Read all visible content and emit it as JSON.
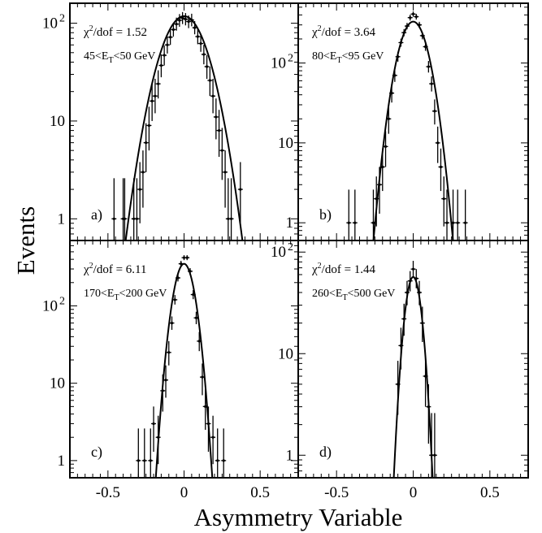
{
  "figure": {
    "ylabel": "Events",
    "xlabel": "Asymmetry Variable",
    "x_ticks": [
      "-0.5",
      "0",
      "0.5"
    ]
  },
  "chart_data": [
    {
      "type": "scatter",
      "panel_label": "a)",
      "chi2_value": "1.52",
      "et_range": {
        "low": "45",
        "high": "50",
        "unit": "GeV"
      },
      "xlim": [
        -0.75,
        0.75
      ],
      "ylim": [
        0.6,
        160
      ],
      "log_y": true,
      "y_ticks": [
        {
          "value": 1,
          "base": "1",
          "exp": ""
        },
        {
          "value": 10,
          "base": "10",
          "exp": ""
        },
        {
          "value": 100,
          "base": "10",
          "exp": "2"
        }
      ],
      "fit": {
        "amplitude": 118,
        "mean": 0.0,
        "sigma": 0.118
      },
      "points": [
        {
          "x": -0.46,
          "y": 1.0,
          "err": [
            0.6,
            2.6
          ]
        },
        {
          "x": -0.4,
          "y": 1.0,
          "err": [
            0.6,
            2.6
          ]
        },
        {
          "x": -0.39,
          "y": 1.0,
          "err": [
            0.6,
            2.6
          ]
        },
        {
          "x": -0.33,
          "y": 1.0,
          "err": [
            0.6,
            2.6
          ]
        },
        {
          "x": -0.31,
          "y": 1.0,
          "err": [
            0.6,
            2.6
          ]
        },
        {
          "x": -0.29,
          "y": 2.0,
          "err": [
            0.9,
            3.8
          ]
        },
        {
          "x": -0.27,
          "y": 3.0,
          "err": [
            1.3,
            5.0
          ]
        },
        {
          "x": -0.25,
          "y": 6.0,
          "err": [
            3.0,
            9.5
          ]
        },
        {
          "x": -0.23,
          "y": 9.0,
          "err": [
            5.0,
            14.0
          ]
        },
        {
          "x": -0.21,
          "y": 16.0,
          "err": [
            10.0,
            24.0
          ]
        },
        {
          "x": -0.19,
          "y": 18.0,
          "err": [
            12.0,
            27.0
          ]
        },
        {
          "x": -0.17,
          "y": 24.0,
          "err": [
            17.0,
            33.0
          ]
        },
        {
          "x": -0.15,
          "y": 37.0,
          "err": [
            28.0,
            48.0
          ]
        },
        {
          "x": -0.13,
          "y": 47.0,
          "err": [
            37.0,
            59.0
          ]
        },
        {
          "x": -0.11,
          "y": 60.0,
          "err": [
            49.0,
            73.0
          ]
        },
        {
          "x": -0.09,
          "y": 72.0,
          "err": [
            60.0,
            86.0
          ]
        },
        {
          "x": -0.07,
          "y": 86.0,
          "err": [
            73.0,
            101.0
          ]
        },
        {
          "x": -0.05,
          "y": 98.0,
          "err": [
            84.0,
            114.0
          ]
        },
        {
          "x": -0.03,
          "y": 107.0,
          "err": [
            92.0,
            124.0
          ]
        },
        {
          "x": -0.01,
          "y": 113.0,
          "err": [
            98.0,
            130.0
          ]
        },
        {
          "x": 0.01,
          "y": 110.0,
          "err": [
            95.0,
            127.0
          ]
        },
        {
          "x": 0.03,
          "y": 104.0,
          "err": [
            89.0,
            120.0
          ]
        },
        {
          "x": 0.05,
          "y": 108.0,
          "err": [
            93.0,
            125.0
          ]
        },
        {
          "x": 0.07,
          "y": 90.0,
          "err": [
            77.0,
            105.0
          ]
        },
        {
          "x": 0.09,
          "y": 73.0,
          "err": [
            61.0,
            87.0
          ]
        },
        {
          "x": 0.11,
          "y": 62.0,
          "err": [
            51.0,
            75.0
          ]
        },
        {
          "x": 0.13,
          "y": 48.0,
          "err": [
            38.0,
            60.0
          ]
        },
        {
          "x": 0.15,
          "y": 36.0,
          "err": [
            27.0,
            47.0
          ]
        },
        {
          "x": 0.17,
          "y": 26.0,
          "err": [
            18.0,
            36.0
          ]
        },
        {
          "x": 0.19,
          "y": 18.0,
          "err": [
            12.0,
            27.0
          ]
        },
        {
          "x": 0.21,
          "y": 11.0,
          "err": [
            6.5,
            17.0
          ]
        },
        {
          "x": 0.23,
          "y": 8.0,
          "err": [
            4.3,
            13.0
          ]
        },
        {
          "x": 0.25,
          "y": 5.0,
          "err": [
            2.5,
            8.5
          ]
        },
        {
          "x": 0.27,
          "y": 3.0,
          "err": [
            1.3,
            5.0
          ]
        },
        {
          "x": 0.29,
          "y": 1.0,
          "err": [
            0.6,
            2.6
          ]
        },
        {
          "x": 0.31,
          "y": 1.0,
          "err": [
            0.6,
            2.6
          ]
        },
        {
          "x": 0.37,
          "y": 2.0,
          "err": [
            0.9,
            3.8
          ]
        }
      ]
    },
    {
      "type": "scatter",
      "panel_label": "b)",
      "chi2_value": "3.64",
      "et_range": {
        "low": "80",
        "high": "95",
        "unit": "GeV"
      },
      "xlim": [
        -0.75,
        0.75
      ],
      "ylim": [
        0.6,
        560
      ],
      "log_y": true,
      "y_ticks": [
        {
          "value": 1,
          "base": "1",
          "exp": ""
        },
        {
          "value": 10,
          "base": "10",
          "exp": ""
        },
        {
          "value": 100,
          "base": "10",
          "exp": "2"
        }
      ],
      "fit": {
        "amplitude": 330,
        "mean": 0.0,
        "sigma": 0.073
      },
      "points": [
        {
          "x": -0.42,
          "y": 1.0,
          "err": [
            0.6,
            2.6
          ]
        },
        {
          "x": -0.38,
          "y": 1.0,
          "err": [
            0.6,
            2.6
          ]
        },
        {
          "x": -0.26,
          "y": 1.0,
          "err": [
            0.6,
            2.6
          ]
        },
        {
          "x": -0.24,
          "y": 2.0,
          "err": [
            0.9,
            3.8
          ]
        },
        {
          "x": -0.22,
          "y": 3.0,
          "err": [
            1.3,
            5.0
          ]
        },
        {
          "x": -0.2,
          "y": 5.0,
          "err": [
            2.5,
            8.5
          ]
        },
        {
          "x": -0.18,
          "y": 9.0,
          "err": [
            5.0,
            14.0
          ]
        },
        {
          "x": -0.16,
          "y": 20.0,
          "err": [
            13.0,
            29.0
          ]
        },
        {
          "x": -0.14,
          "y": 42.0,
          "err": [
            32.0,
            54.0
          ]
        },
        {
          "x": -0.12,
          "y": 70.0,
          "err": [
            58.0,
            84.0
          ]
        },
        {
          "x": -0.1,
          "y": 120.0,
          "err": [
            104.0,
            138.0
          ]
        },
        {
          "x": -0.08,
          "y": 180.0,
          "err": [
            160.0,
            202.0
          ]
        },
        {
          "x": -0.06,
          "y": 240.0,
          "err": [
            216.0,
            266.0
          ]
        },
        {
          "x": -0.04,
          "y": 290.0,
          "err": [
            264.0,
            318.0
          ]
        },
        {
          "x": -0.02,
          "y": 370.0,
          "err": [
            340.0,
            402.0
          ]
        },
        {
          "x": 0.0,
          "y": 410.0,
          "err": [
            380.0,
            442.0
          ]
        },
        {
          "x": 0.02,
          "y": 380.0,
          "err": [
            350.0,
            412.0
          ]
        },
        {
          "x": 0.04,
          "y": 300.0,
          "err": [
            274.0,
            328.0
          ]
        },
        {
          "x": 0.06,
          "y": 220.0,
          "err": [
            198.0,
            244.0
          ]
        },
        {
          "x": 0.08,
          "y": 160.0,
          "err": [
            142.0,
            180.0
          ]
        },
        {
          "x": 0.1,
          "y": 90.0,
          "err": [
            76.0,
            106.0
          ]
        },
        {
          "x": 0.12,
          "y": 55.0,
          "err": [
            44.0,
            68.0
          ]
        },
        {
          "x": 0.14,
          "y": 25.0,
          "err": [
            17.0,
            35.0
          ]
        },
        {
          "x": 0.16,
          "y": 10.0,
          "err": [
            5.6,
            16.0
          ]
        },
        {
          "x": 0.18,
          "y": 5.0,
          "err": [
            2.5,
            8.5
          ]
        },
        {
          "x": 0.2,
          "y": 2.0,
          "err": [
            0.9,
            3.8
          ]
        },
        {
          "x": 0.22,
          "y": 1.0,
          "err": [
            0.6,
            2.6
          ]
        },
        {
          "x": 0.26,
          "y": 1.0,
          "err": [
            0.6,
            2.6
          ]
        },
        {
          "x": 0.29,
          "y": 1.0,
          "err": [
            0.6,
            2.6
          ]
        },
        {
          "x": 0.34,
          "y": 1.0,
          "err": [
            0.6,
            2.6
          ]
        }
      ]
    },
    {
      "type": "scatter",
      "panel_label": "c)",
      "chi2_value": "6.11",
      "et_range": {
        "low": "170",
        "high": "200",
        "unit": "GeV"
      },
      "xlim": [
        -0.75,
        0.75
      ],
      "ylim": [
        0.6,
        700
      ],
      "log_y": true,
      "y_ticks": [
        {
          "value": 1,
          "base": "1",
          "exp": ""
        },
        {
          "value": 10,
          "base": "10",
          "exp": ""
        },
        {
          "value": 100,
          "base": "10",
          "exp": "2"
        }
      ],
      "fit": {
        "amplitude": 350,
        "mean": 0.0,
        "sigma": 0.052
      },
      "points": [
        {
          "x": -0.3,
          "y": 1.0,
          "err": [
            0.6,
            2.6
          ]
        },
        {
          "x": -0.26,
          "y": 1.0,
          "err": [
            0.6,
            2.6
          ]
        },
        {
          "x": -0.22,
          "y": 1.0,
          "err": [
            0.6,
            2.6
          ]
        },
        {
          "x": -0.2,
          "y": 3.0,
          "err": [
            1.3,
            5.0
          ]
        },
        {
          "x": -0.17,
          "y": 2.0,
          "err": [
            0.9,
            3.8
          ]
        },
        {
          "x": -0.14,
          "y": 8.0,
          "err": [
            4.3,
            13.0
          ]
        },
        {
          "x": -0.12,
          "y": 11.0,
          "err": [
            6.5,
            17.0
          ]
        },
        {
          "x": -0.1,
          "y": 25.0,
          "err": [
            17.0,
            35.0
          ]
        },
        {
          "x": -0.08,
          "y": 60.0,
          "err": [
            49.0,
            73.0
          ]
        },
        {
          "x": -0.06,
          "y": 120.0,
          "err": [
            104.0,
            138.0
          ]
        },
        {
          "x": -0.04,
          "y": 230.0,
          "err": [
            207.0,
            255.0
          ]
        },
        {
          "x": -0.02,
          "y": 350.0,
          "err": [
            320.0,
            382.0
          ]
        },
        {
          "x": 0.0,
          "y": 420.0,
          "err": [
            390.0,
            452.0
          ]
        },
        {
          "x": 0.02,
          "y": 420.0,
          "err": [
            390.0,
            452.0
          ]
        },
        {
          "x": 0.04,
          "y": 280.0,
          "err": [
            254.0,
            308.0
          ]
        },
        {
          "x": 0.06,
          "y": 140.0,
          "err": [
            122.0,
            160.0
          ]
        },
        {
          "x": 0.08,
          "y": 70.0,
          "err": [
            58.0,
            84.0
          ]
        },
        {
          "x": 0.1,
          "y": 35.0,
          "err": [
            26.0,
            46.0
          ]
        },
        {
          "x": 0.12,
          "y": 12.0,
          "err": [
            7.0,
            18.0
          ]
        },
        {
          "x": 0.14,
          "y": 5.0,
          "err": [
            2.5,
            8.5
          ]
        },
        {
          "x": 0.16,
          "y": 3.0,
          "err": [
            1.3,
            5.0
          ]
        },
        {
          "x": 0.19,
          "y": 2.0,
          "err": [
            0.9,
            3.8
          ]
        },
        {
          "x": 0.22,
          "y": 1.0,
          "err": [
            0.6,
            2.6
          ]
        },
        {
          "x": 0.26,
          "y": 1.0,
          "err": [
            0.6,
            2.6
          ]
        }
      ]
    },
    {
      "type": "scatter",
      "panel_label": "d)",
      "chi2_value": "1.44",
      "et_range": {
        "low": "260",
        "high": "500",
        "unit": "GeV"
      },
      "xlim": [
        -0.75,
        0.75
      ],
      "ylim": [
        0.6,
        130
      ],
      "log_y": true,
      "y_ticks": [
        {
          "value": 1,
          "base": "1",
          "exp": ""
        },
        {
          "value": 10,
          "base": "10",
          "exp": ""
        },
        {
          "value": 100,
          "base": "10",
          "exp": "2"
        }
      ],
      "fit": {
        "amplitude": 57,
        "mean": 0.0,
        "sigma": 0.042
      },
      "points": [
        {
          "x": -0.1,
          "y": 5.0,
          "err": [
            2.5,
            8.5
          ]
        },
        {
          "x": -0.08,
          "y": 12.0,
          "err": [
            7.0,
            18.0
          ]
        },
        {
          "x": -0.06,
          "y": 22.0,
          "err": [
            15.0,
            31.0
          ]
        },
        {
          "x": -0.04,
          "y": 40.0,
          "err": [
            30.0,
            52.0
          ]
        },
        {
          "x": -0.02,
          "y": 52.0,
          "err": [
            41.0,
            65.0
          ]
        },
        {
          "x": 0.0,
          "y": 68.0,
          "err": [
            56.0,
            82.0
          ]
        },
        {
          "x": 0.02,
          "y": 55.0,
          "err": [
            44.0,
            68.0
          ]
        },
        {
          "x": 0.04,
          "y": 40.0,
          "err": [
            30.0,
            52.0
          ]
        },
        {
          "x": 0.06,
          "y": 20.0,
          "err": [
            13.0,
            29.0
          ]
        },
        {
          "x": 0.08,
          "y": 6.0,
          "err": [
            3.0,
            9.5
          ]
        },
        {
          "x": 0.1,
          "y": 3.0,
          "err": [
            1.3,
            5.0
          ]
        },
        {
          "x": 0.12,
          "y": 1.0,
          "err": [
            0.6,
            2.6
          ]
        },
        {
          "x": 0.14,
          "y": 1.0,
          "err": [
            0.6,
            2.6
          ]
        }
      ]
    }
  ]
}
